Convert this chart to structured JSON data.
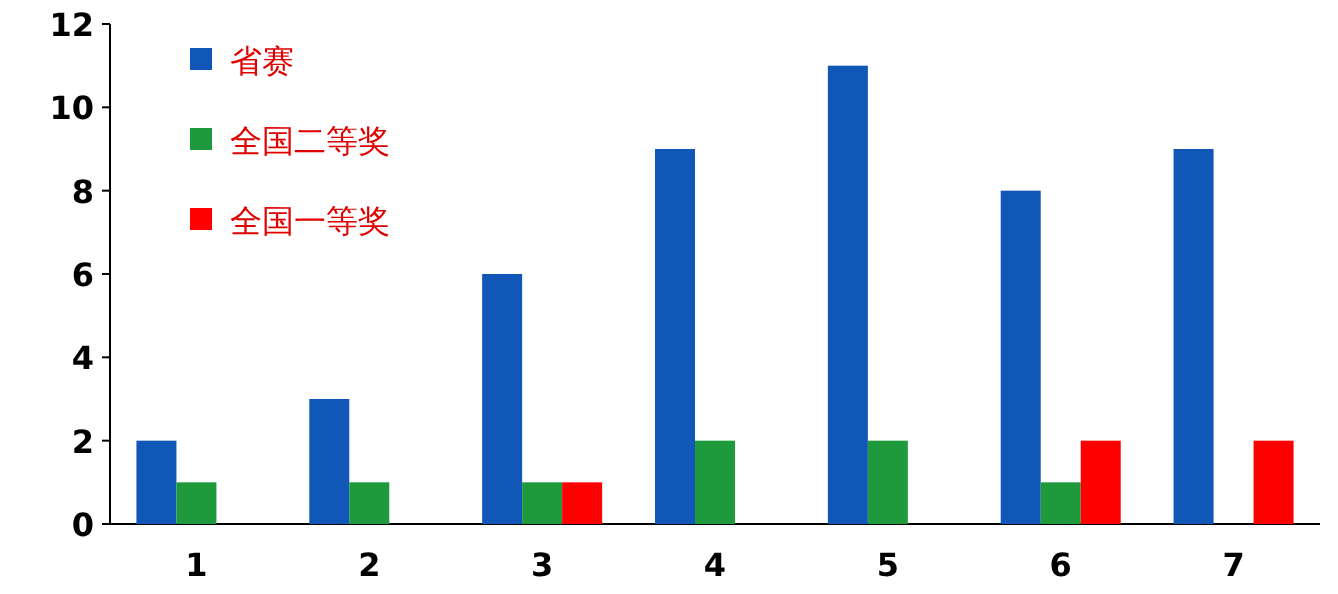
{
  "chart_data": {
    "type": "bar",
    "categories": [
      "1",
      "2",
      "3",
      "4",
      "5",
      "6",
      "7"
    ],
    "series": [
      {
        "name": "省赛",
        "color": "#1157b8",
        "values": [
          2,
          3,
          6,
          9,
          11,
          8,
          9
        ]
      },
      {
        "name": "全国二等奖",
        "color": "#1e9a3c",
        "values": [
          1,
          1,
          1,
          2,
          2,
          1,
          0
        ]
      },
      {
        "name": "全国一等奖",
        "color": "#ff0000",
        "values": [
          0,
          0,
          1,
          0,
          0,
          2,
          2
        ]
      }
    ],
    "ylim": [
      0,
      12
    ],
    "yticks": [
      0,
      2,
      4,
      6,
      8,
      10,
      12
    ],
    "legend": "top left",
    "grid": false
  }
}
